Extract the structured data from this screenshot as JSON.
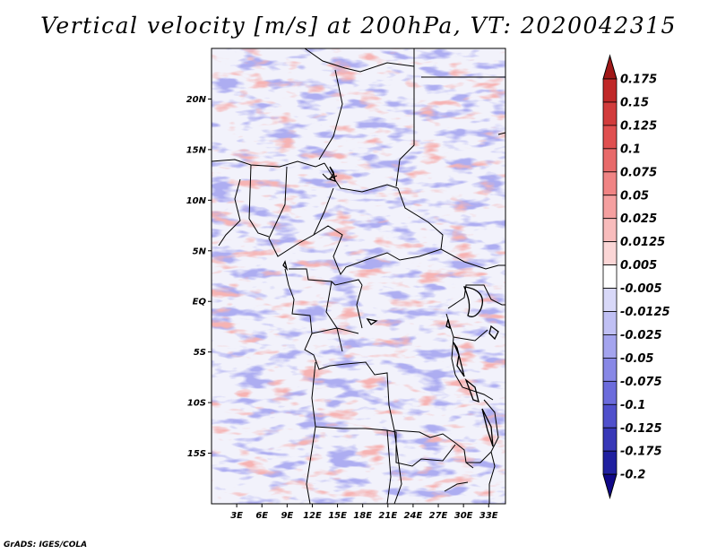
{
  "title": "Vertical velocity [m/s] at 200hPa, VT: 2020042315",
  "credit": "GrADS: IGES/COLA",
  "map": {
    "lon_range": [
      0,
      35
    ],
    "lat_range": [
      -20,
      25
    ],
    "lon_ticks": [
      3,
      6,
      9,
      12,
      15,
      18,
      21,
      24,
      27,
      30,
      33
    ],
    "lon_labels": [
      "3E",
      "6E",
      "9E",
      "12E",
      "15E",
      "18E",
      "21E",
      "24E",
      "27E",
      "30E",
      "33E"
    ],
    "lat_ticks": [
      20,
      15,
      10,
      5,
      0,
      -5,
      -10,
      -15
    ],
    "lat_labels": [
      "20N",
      "15N",
      "10N",
      "5N",
      "EQ",
      "5S",
      "10S",
      "15S"
    ]
  },
  "colorbar": {
    "labels": [
      "0.175",
      "0.15",
      "0.125",
      "0.1",
      "0.075",
      "0.05",
      "0.025",
      "0.0125",
      "0.005",
      "-0.005",
      "-0.0125",
      "-0.025",
      "-0.05",
      "-0.075",
      "-0.1",
      "-0.125",
      "-0.175",
      "-0.2"
    ],
    "colors": [
      "#a01818",
      "#c02828",
      "#d23c3c",
      "#e05050",
      "#e86a6a",
      "#f08484",
      "#f5a0a0",
      "#f8bcbc",
      "#fbd6d6",
      "#ffffff",
      "#d8d8f8",
      "#c0c0f4",
      "#a4a4ee",
      "#8888e6",
      "#6c6cdc",
      "#5050cc",
      "#3838b8",
      "#2020a0",
      "#100888"
    ]
  }
}
